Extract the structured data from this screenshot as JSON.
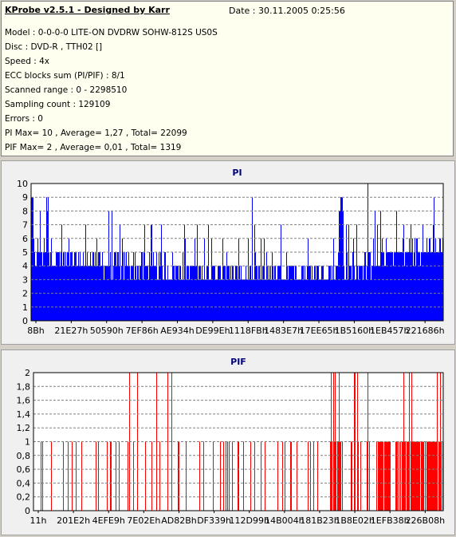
{
  "header": {
    "title": "KProbe v2.5.1 - Designed by Karr",
    "date": "Date : 30.11.2005 0:25:56",
    "lines": [
      "Model : 0-0-0-0 LITE-ON DVDRW SOHW-812S  US0S",
      "Disc : DVD-R , TTH02 []",
      "Speed : 4x",
      "ECC blocks sum (PI/PIF) : 8/1",
      "Scanned range : 0 - 2298510",
      "Sampling count : 129109",
      "Errors : 0",
      "PI Max= 10 , Average= 1,27 , Total= 22099",
      "PIF Max= 2 , Average= 0,01 , Total= 1319"
    ]
  },
  "chart_data": [
    {
      "type": "bar",
      "title": "PI",
      "color": "#0000ff",
      "ylim": [
        0,
        10
      ],
      "yticks": [
        "0",
        "1",
        "2",
        "3",
        "4",
        "5",
        "6",
        "7",
        "8",
        "9",
        "10"
      ],
      "xticks": [
        "8Bh",
        "21E27h",
        "50590h",
        "7EF86h",
        "AE934h",
        "DE99Eh",
        "1118FBh",
        "1483E7h",
        "17EE65h",
        "1B5160h",
        "1EB457h",
        "221686h"
      ],
      "grid": true,
      "description_levels": {
        "base_profile": [
          5,
          4.5,
          4.2,
          4,
          3.8,
          3.6,
          3.5,
          3.6,
          3.8,
          4.2,
          5,
          5.5
        ],
        "max": 10
      }
    },
    {
      "type": "bar",
      "title": "PIF",
      "color": "#ff0000",
      "ylim": [
        0,
        2
      ],
      "yticks": [
        "0",
        "0,2",
        "0,4",
        "0,6",
        "0,8",
        "1",
        "1,2",
        "1,4",
        "1,6",
        "1,8",
        "2"
      ],
      "xticks": [
        "11h",
        "201E2h",
        "4EFE9h",
        "7E02Eh",
        "AD82Bh",
        "DF339h",
        "112D99h",
        "14B004h",
        "181B23h",
        "1B8E02h",
        "1EFB38h",
        "226B08h"
      ],
      "grid": true,
      "description_levels": {
        "max": 2
      }
    }
  ]
}
